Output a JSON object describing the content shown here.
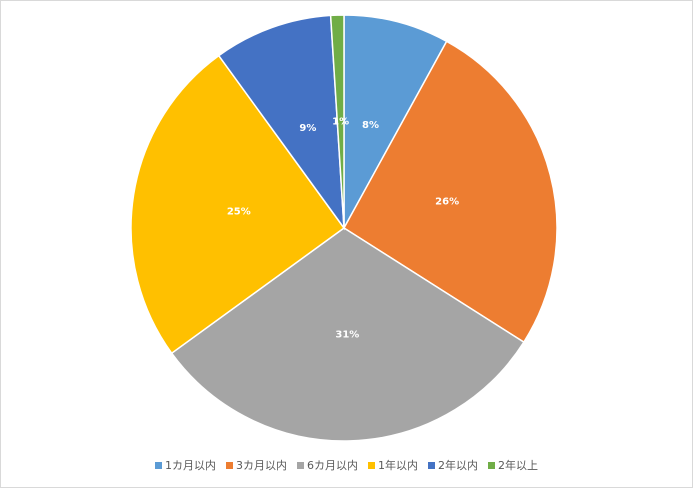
{
  "chart_data": {
    "type": "pie",
    "categories": [
      "1カ月以内",
      "3カ月以内",
      "6カ月以内",
      "1年以内",
      "2年以内",
      "2年以上"
    ],
    "values": [
      8,
      26,
      31,
      25,
      9,
      1
    ],
    "value_labels": [
      "8%",
      "26%",
      "31%",
      "25%",
      "9%",
      "1%"
    ],
    "colors": [
      "#5b9bd5",
      "#ed7d31",
      "#a5a5a5",
      "#ffc000",
      "#4472c4",
      "#70ad47"
    ],
    "legend": "bottom"
  }
}
